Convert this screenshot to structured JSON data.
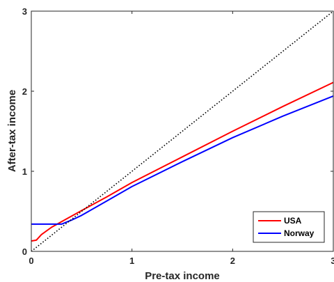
{
  "chart_data": {
    "type": "line",
    "title": "",
    "xlabel": "Pre-tax income",
    "ylabel": "After-tax income",
    "xlim": [
      0,
      3
    ],
    "ylim": [
      0,
      3
    ],
    "xticks": [
      0,
      1,
      2,
      3
    ],
    "yticks": [
      0,
      1,
      2,
      3
    ],
    "xtick_labels": [
      "0",
      "1",
      "2",
      "3"
    ],
    "ytick_labels": [
      "0",
      "1",
      "2",
      "3"
    ],
    "grid": false,
    "legend_position": "bottom-right",
    "series": [
      {
        "name": "USA",
        "color": "#ff0000",
        "x": [
          0,
          0.05,
          0.1,
          0.2,
          0.3,
          0.5,
          0.75,
          1.0,
          1.5,
          2.0,
          2.5,
          3.0
        ],
        "y": [
          0.13,
          0.14,
          0.21,
          0.3,
          0.37,
          0.51,
          0.68,
          0.86,
          1.18,
          1.5,
          1.81,
          2.11
        ]
      },
      {
        "name": "Norway",
        "color": "#0000ff",
        "x": [
          0,
          0.1,
          0.2,
          0.3,
          0.4,
          0.5,
          0.75,
          1.0,
          1.5,
          2.0,
          2.5,
          3.0
        ],
        "y": [
          0.34,
          0.34,
          0.34,
          0.34,
          0.39,
          0.45,
          0.63,
          0.81,
          1.12,
          1.42,
          1.69,
          1.94
        ]
      },
      {
        "name": "",
        "color": "#000000",
        "style": "dotted",
        "x": [
          0,
          3
        ],
        "y": [
          0,
          3
        ]
      }
    ]
  }
}
